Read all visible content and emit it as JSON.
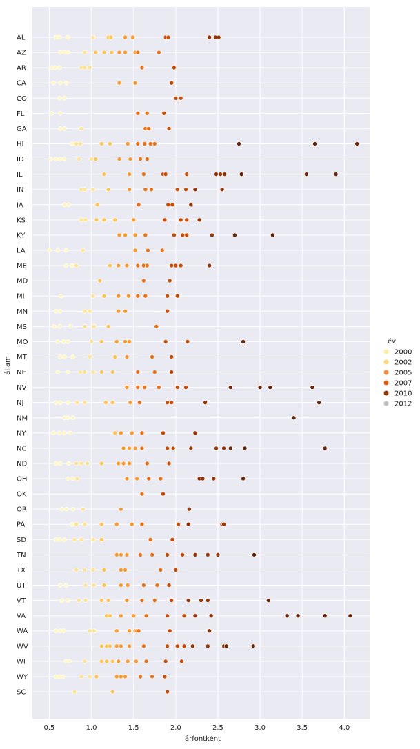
{
  "chart_data": {
    "type": "scatter",
    "xlabel": "árfontként",
    "ylabel": "állam",
    "xlim": [
      0.3,
      4.3
    ],
    "x_ticks": [
      "0.5",
      "1.0",
      "1.5",
      "2.0",
      "2.5",
      "3.0",
      "3.5",
      "4.0"
    ],
    "x_tick_values": [
      0.5,
      1.0,
      1.5,
      2.0,
      2.5,
      3.0,
      3.5,
      4.0
    ],
    "grid": true,
    "background": "#eaeaf2",
    "legend": {
      "title": "év",
      "placement": "right",
      "entries": [
        {
          "label": "2000",
          "color": "#ffeda0"
        },
        {
          "label": "2002",
          "color": "#fed976"
        },
        {
          "label": "2005",
          "color": "#fd8d3c"
        },
        {
          "label": "2007",
          "color": "#e8590c"
        },
        {
          "label": "2010",
          "color": "#993404"
        },
        {
          "label": "2012",
          "color": "#c0c0c0"
        }
      ]
    },
    "states": [
      "AL",
      "AZ",
      "AR",
      "CA",
      "CO",
      "FL",
      "GA",
      "HI",
      "ID",
      "IL",
      "IN",
      "IA",
      "KS",
      "KY",
      "LA",
      "ME",
      "MD",
      "MI",
      "MN",
      "MS",
      "MO",
      "MT",
      "NE",
      "NV",
      "NJ",
      "NM",
      "NY",
      "NC",
      "ND",
      "OH",
      "OK",
      "OR",
      "PA",
      "SD",
      "TN",
      "TX",
      "UT",
      "VT",
      "VA",
      "WA",
      "WV",
      "WI",
      "WY",
      "SC"
    ],
    "colors": [
      "#fff7c4",
      "#fee391",
      "#fec44f",
      "#fe9929",
      "#ec7014",
      "#cc4c02",
      "#993404",
      "#662506"
    ],
    "rows": [
      [
        0.58,
        0.62,
        0.72,
        1.02,
        1.2,
        1.23,
        1.4,
        1.49,
        1.88,
        1.91,
        2.4,
        2.47,
        2.51
      ],
      [
        0.63,
        0.68,
        0.72,
        0.92,
        1.05,
        1.15,
        1.24,
        1.33,
        1.4,
        1.52,
        1.55,
        1.8
      ],
      [
        0.53,
        0.57,
        0.62,
        0.88,
        0.92,
        0.98,
        1.6,
        1.98
      ],
      [
        0.55,
        0.63,
        0.7,
        1.33,
        1.52,
        1.95
      ],
      [
        0.62,
        0.68,
        2.0,
        2.06
      ],
      [
        0.53,
        0.63,
        1.55,
        1.66,
        1.86
      ],
      [
        0.63,
        0.68,
        0.88,
        1.64,
        1.68,
        1.92
      ],
      [
        0.77,
        0.82,
        0.87,
        1.12,
        1.22,
        1.43,
        1.55,
        1.63,
        1.7,
        1.75,
        2.75,
        3.65,
        4.15
      ],
      [
        0.52,
        0.58,
        0.63,
        0.68,
        0.85,
        1.0,
        1.05,
        1.33,
        1.46,
        1.58,
        1.66
      ],
      [
        1.15,
        1.45,
        1.62,
        1.85,
        1.88,
        2.13,
        2.48,
        2.53,
        2.58,
        2.78,
        3.55,
        3.9
      ],
      [
        0.88,
        0.92,
        1.02,
        1.2,
        1.45,
        1.64,
        1.71,
        2.02,
        2.12,
        2.23,
        2.55
      ],
      [
        0.68,
        0.73,
        1.07,
        1.56,
        1.91,
        1.96,
        2.18
      ],
      [
        0.88,
        0.93,
        1.06,
        1.15,
        1.28,
        1.5,
        1.87,
        2.06,
        2.13,
        2.28
      ],
      [
        1.33,
        1.4,
        1.52,
        1.64,
        1.98,
        2.08,
        2.13,
        2.43,
        2.7,
        3.15
      ],
      [
        0.5,
        0.6,
        0.7,
        0.9,
        1.52,
        1.67,
        1.84
      ],
      [
        0.7,
        0.77,
        0.82,
        1.22,
        1.32,
        1.42,
        1.55,
        1.62,
        1.66,
        1.95,
        2.0,
        2.06,
        2.4
      ],
      [
        1.1,
        1.62,
        1.93
      ],
      [
        0.64,
        1.02,
        1.15,
        1.32,
        1.44,
        1.55,
        1.64,
        1.9,
        2.02
      ],
      [
        0.58,
        0.63,
        0.92,
        0.98,
        1.32,
        1.4,
        1.9
      ],
      [
        0.56,
        0.62,
        0.75,
        0.92,
        1.03,
        1.2,
        1.77
      ],
      [
        0.6,
        0.67,
        0.72,
        1.0,
        1.12,
        1.3,
        1.4,
        1.45,
        1.88,
        2.14,
        2.8
      ],
      [
        0.63,
        0.68,
        0.78,
        0.98,
        1.28,
        1.42,
        1.72,
        1.95
      ],
      [
        0.6,
        0.72,
        0.87,
        0.92,
        1.02,
        1.12,
        1.25,
        1.55,
        1.75,
        1.95
      ],
      [
        1.42,
        1.55,
        1.63,
        1.8,
        2.02,
        2.12,
        2.65,
        3.0,
        3.12,
        3.62
      ],
      [
        0.58,
        0.63,
        0.72,
        0.83,
        0.92,
        1.17,
        1.25,
        1.46,
        1.57,
        1.9,
        1.95,
        2.35,
        3.7
      ],
      [
        0.68,
        0.72,
        0.78,
        3.4
      ],
      [
        0.55,
        0.62,
        0.68,
        0.75,
        1.28,
        1.35,
        1.48,
        1.6,
        1.85,
        2.23
      ],
      [
        1.38,
        1.45,
        1.52,
        1.6,
        1.9,
        1.97,
        2.18,
        2.48,
        2.57,
        2.65,
        2.82,
        3.77
      ],
      [
        0.58,
        0.63,
        0.73,
        0.82,
        0.88,
        0.95,
        1.12,
        1.32,
        1.38,
        1.45,
        1.66,
        1.92
      ],
      [
        0.72,
        0.78,
        0.83,
        1.42,
        1.54,
        1.68,
        1.82,
        2.28,
        2.32,
        2.45,
        2.8
      ],
      [
        1.6,
        1.85
      ],
      [
        0.65,
        0.7,
        0.78,
        0.9,
        1.35,
        2.16
      ],
      [
        0.77,
        0.82,
        0.92,
        1.12,
        1.3,
        1.48,
        1.6,
        2.03,
        2.15,
        2.55,
        2.57
      ],
      [
        0.58,
        0.62,
        0.68,
        0.8,
        0.88,
        1.02,
        1.12,
        1.7,
        1.96
      ],
      [
        1.3,
        1.35,
        1.42,
        1.58,
        1.72,
        1.9,
        2.08,
        2.23,
        2.38,
        2.5,
        2.93
      ],
      [
        0.82,
        0.92,
        1.02,
        1.15,
        1.35,
        1.4,
        1.82,
        2.0
      ],
      [
        0.63,
        0.7,
        0.93,
        1.03,
        1.15,
        1.35,
        1.43,
        1.62,
        1.78,
        1.92
      ],
      [
        0.65,
        0.72,
        0.85,
        0.93,
        1.12,
        1.2,
        1.42,
        1.6,
        1.75,
        1.95,
        2.15,
        2.3,
        2.38,
        3.1
      ],
      [
        1.18,
        1.22,
        1.35,
        1.5,
        1.65,
        1.9,
        2.1,
        2.23,
        2.42,
        3.32,
        3.45,
        3.77,
        4.07
      ],
      [
        0.58,
        0.63,
        0.67,
        0.98,
        1.03,
        1.3,
        1.45,
        1.52,
        1.54,
        1.56,
        1.93,
        2.4
      ],
      [
        1.12,
        1.18,
        1.22,
        1.3,
        1.35,
        1.45,
        1.62,
        1.9,
        2.02,
        2.1,
        2.2,
        2.38,
        2.57,
        2.6,
        2.92
      ],
      [
        0.7,
        0.74,
        0.92,
        1.12,
        1.18,
        1.25,
        1.32,
        1.43,
        1.53,
        1.65,
        1.88,
        2.07
      ],
      [
        0.58,
        0.62,
        0.66,
        0.88,
        0.98,
        1.06,
        1.3,
        1.35,
        1.4,
        1.58,
        1.72,
        1.87
      ],
      [
        0.8,
        1.25,
        1.9
      ]
    ]
  }
}
